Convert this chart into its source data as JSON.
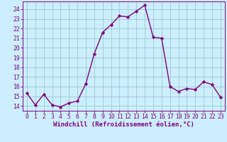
{
  "x": [
    0,
    1,
    2,
    3,
    4,
    5,
    6,
    7,
    8,
    9,
    10,
    11,
    12,
    13,
    14,
    15,
    16,
    17,
    18,
    19,
    20,
    21,
    22,
    23
  ],
  "y": [
    15.3,
    14.1,
    15.2,
    14.1,
    13.9,
    14.3,
    14.5,
    16.3,
    19.4,
    21.6,
    22.4,
    23.3,
    23.2,
    23.8,
    24.4,
    21.1,
    21.0,
    16.0,
    15.5,
    15.8,
    15.7,
    16.5,
    16.2,
    14.9
  ],
  "color": "#800080",
  "bg_color": "#cceeff",
  "grid_color": "#99cccc",
  "xlabel": "Windchill (Refroidissement éolien,°C)",
  "ylim": [
    13.5,
    24.8
  ],
  "xlim": [
    -0.5,
    23.5
  ],
  "yticks": [
    14,
    15,
    16,
    17,
    18,
    19,
    20,
    21,
    22,
    23,
    24
  ],
  "xticks": [
    0,
    1,
    2,
    3,
    4,
    5,
    6,
    7,
    8,
    9,
    10,
    11,
    12,
    13,
    14,
    15,
    16,
    17,
    18,
    19,
    20,
    21,
    22,
    23
  ],
  "marker": "D",
  "markersize": 2.2,
  "linewidth": 1.0,
  "xlabel_fontsize": 6.5,
  "tick_fontsize": 5.8
}
